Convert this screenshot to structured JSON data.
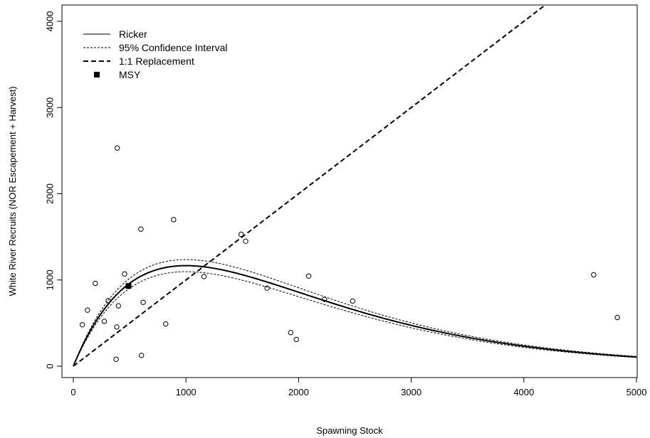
{
  "chart_data": {
    "type": "scatter",
    "xlabel": "Spawning Stock",
    "ylabel": "White River Recruits (NOR Escapement + Harvest)",
    "xlim": [
      0,
      5000
    ],
    "ylim": [
      0,
      4000
    ],
    "x_ticks": [
      "0",
      "1000",
      "2000",
      "3000",
      "4000",
      "5000"
    ],
    "y_ticks": [
      "0",
      "1000",
      "2000",
      "3000",
      "4000"
    ],
    "grid": false,
    "legend_position": "top-left",
    "legend": [
      {
        "label": "Ricker",
        "style": "solid-line"
      },
      {
        "label": "95% Confidence Interval",
        "style": "dotted-line"
      },
      {
        "label": "1:1 Replacement",
        "style": "dashed-line"
      },
      {
        "label": "MSY",
        "style": "filled-square"
      }
    ],
    "observations": [
      {
        "x": 80,
        "y": 480
      },
      {
        "x": 125,
        "y": 650
      },
      {
        "x": 195,
        "y": 960
      },
      {
        "x": 275,
        "y": 520
      },
      {
        "x": 310,
        "y": 760
      },
      {
        "x": 390,
        "y": 2530
      },
      {
        "x": 385,
        "y": 455
      },
      {
        "x": 400,
        "y": 700
      },
      {
        "x": 380,
        "y": 80
      },
      {
        "x": 455,
        "y": 1070
      },
      {
        "x": 600,
        "y": 1590
      },
      {
        "x": 620,
        "y": 740
      },
      {
        "x": 605,
        "y": 125
      },
      {
        "x": 820,
        "y": 490
      },
      {
        "x": 890,
        "y": 1700
      },
      {
        "x": 1160,
        "y": 1040
      },
      {
        "x": 1490,
        "y": 1530
      },
      {
        "x": 1530,
        "y": 1450
      },
      {
        "x": 1720,
        "y": 905
      },
      {
        "x": 1930,
        "y": 390
      },
      {
        "x": 1980,
        "y": 310
      },
      {
        "x": 2090,
        "y": 1045
      },
      {
        "x": 2230,
        "y": 775
      },
      {
        "x": 2480,
        "y": 755
      },
      {
        "x": 4620,
        "y": 1060
      },
      {
        "x": 4830,
        "y": 565
      }
    ],
    "ricker": {
      "a": 3.17,
      "b": 0.001,
      "ci_low_factor": 0.94,
      "ci_high_factor": 1.06
    },
    "msy": {
      "x": 490,
      "y": 930
    }
  }
}
